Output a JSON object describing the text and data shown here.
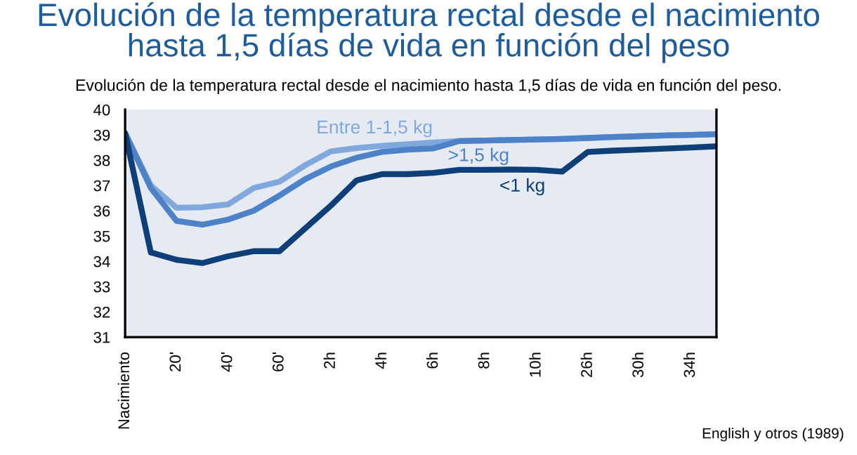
{
  "chart_data": {
    "type": "line",
    "title": "Evolución de la temperatura rectal desde el nacimiento\nhasta 1,5 días de vida en función del peso",
    "subtitle": "Evolución de la temperatura rectal desde el nacimiento hasta 1,5 días de vida en función del peso.",
    "annotations": [
      "English y otros (1989)"
    ],
    "ylim": [
      31,
      40
    ],
    "yticks": [
      31,
      32,
      33,
      34,
      35,
      36,
      37,
      38,
      39,
      40
    ],
    "categories": [
      "Nacimiento",
      null,
      "20'",
      null,
      "40'",
      null,
      "60'",
      null,
      "2h",
      null,
      "4h",
      null,
      "6h",
      null,
      "8h",
      null,
      "10h",
      null,
      "26h",
      null,
      "30h",
      null,
      "34h",
      null
    ],
    "grid": false,
    "legend": false,
    "marker": "none",
    "line_style": "solid",
    "series": [
      {
        "name": "Entre 1-1,5 kg",
        "color": "#80a8dc",
        "values": [
          39.07,
          37.0,
          36.12,
          36.14,
          36.25,
          36.9,
          37.15,
          37.8,
          38.35,
          38.48,
          38.57,
          38.63,
          38.7,
          38.76,
          38.78,
          38.8,
          38.82,
          38.84,
          38.88,
          38.92,
          38.95,
          38.98,
          39.0,
          39.03
        ]
      },
      {
        "name": ">1,5 kg",
        "color": "#4d82c9",
        "values": [
          39.07,
          36.9,
          35.6,
          35.45,
          35.65,
          36.0,
          36.6,
          37.25,
          37.75,
          38.1,
          38.33,
          38.42,
          38.47,
          38.76,
          38.78,
          38.8,
          38.82,
          38.84,
          38.88,
          38.92,
          38.95,
          38.98,
          39.0,
          39.03
        ]
      },
      {
        "name": "<1 kg",
        "color": "#0f3f78",
        "values": [
          39.07,
          34.35,
          34.06,
          33.93,
          34.2,
          34.4,
          34.4,
          35.3,
          36.2,
          37.2,
          37.45,
          37.45,
          37.5,
          37.62,
          37.62,
          37.63,
          37.62,
          37.55,
          38.33,
          38.38,
          38.42,
          38.46,
          38.5,
          38.55
        ]
      }
    ]
  }
}
